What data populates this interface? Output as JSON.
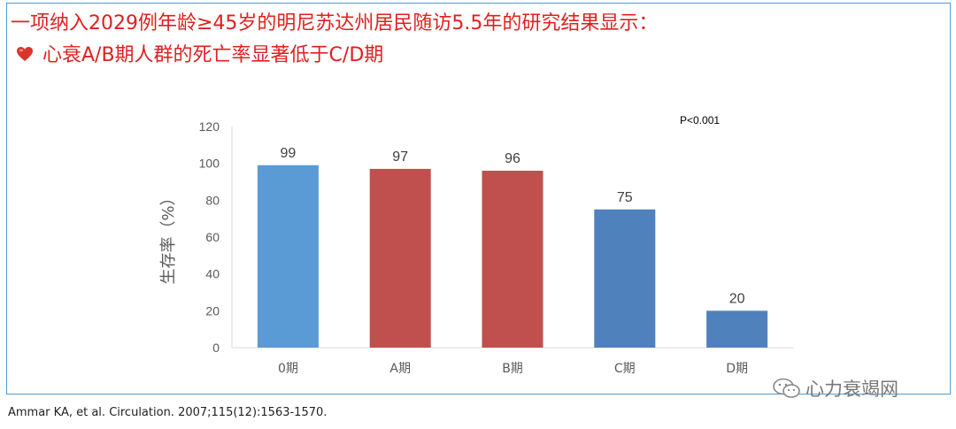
{
  "header": {
    "line1": "一项纳入2029例年龄≥45岁的明尼苏达州居民随访5.5年的研究结果显示：",
    "line2": "心衰A/B期人群的死亡率显著低于C/D期",
    "bullet_icon": "heart-icon"
  },
  "chart_data": {
    "type": "bar",
    "categories": [
      "0期",
      "A期",
      "B期",
      "C期",
      "D期"
    ],
    "values": [
      99,
      97,
      96,
      75,
      20
    ],
    "data_labels": [
      "99",
      "97",
      "96",
      "75",
      "20"
    ],
    "ylabel": "生存率（%）",
    "xlabel": "",
    "ylim": [
      0,
      120
    ],
    "yticks": [
      0,
      20,
      40,
      60,
      80,
      100,
      120
    ],
    "annotation": "P<0.001",
    "grid": false,
    "bar_colors": [
      "#5b9bd5",
      "#c0504d",
      "#c0504d",
      "#4f81bd",
      "#4f81bd"
    ]
  },
  "citation": "Ammar KA, et al. Circulation. 2007;115(12):1563-1570.",
  "watermark": {
    "icon": "wechat-icon",
    "text": "心力衰竭网"
  },
  "colors": {
    "title": "#e02020",
    "frame_border": "#4d9bd6"
  }
}
